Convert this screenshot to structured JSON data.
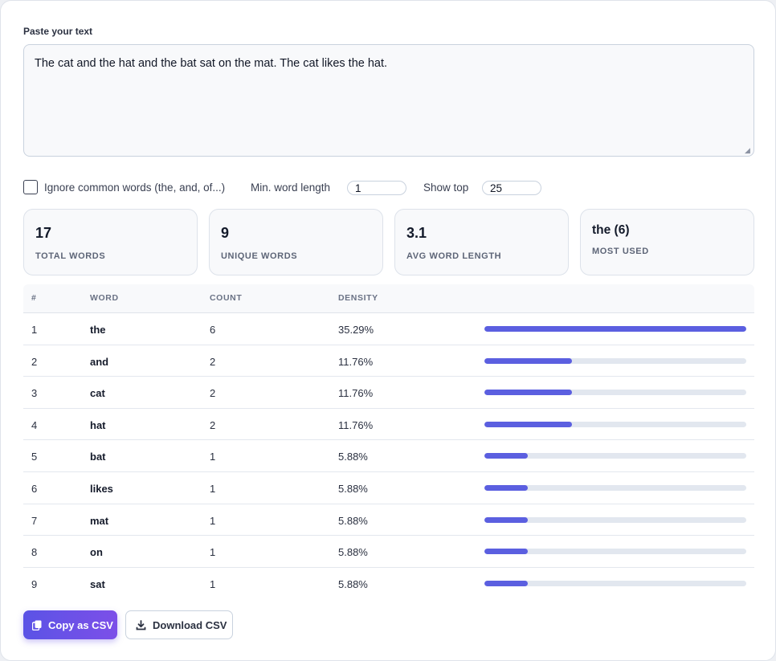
{
  "input": {
    "label": "Paste your text",
    "value": "The cat and the hat and the bat sat on the mat. The cat likes the hat."
  },
  "options": {
    "ignore_common_label": "Ignore common words (the, and, of...)",
    "ignore_common_checked": false,
    "min_length_label": "Min. word length",
    "min_length_value": "1",
    "show_top_label": "Show top",
    "show_top_value": "25"
  },
  "stats": [
    {
      "value": "17",
      "label": "TOTAL WORDS"
    },
    {
      "value": "9",
      "label": "UNIQUE WORDS"
    },
    {
      "value": "3.1",
      "label": "AVG WORD LENGTH"
    },
    {
      "value": "the (6)",
      "label": "MOST USED"
    }
  ],
  "table": {
    "headers": [
      "#",
      "WORD",
      "COUNT",
      "DENSITY"
    ],
    "rows": [
      {
        "rank": "1",
        "word": "the",
        "count": "6",
        "density": "35.29%",
        "bar_fraction": 1.0
      },
      {
        "rank": "2",
        "word": "and",
        "count": "2",
        "density": "11.76%",
        "bar_fraction": 0.3333
      },
      {
        "rank": "3",
        "word": "cat",
        "count": "2",
        "density": "11.76%",
        "bar_fraction": 0.3333
      },
      {
        "rank": "4",
        "word": "hat",
        "count": "2",
        "density": "11.76%",
        "bar_fraction": 0.3333
      },
      {
        "rank": "5",
        "word": "bat",
        "count": "1",
        "density": "5.88%",
        "bar_fraction": 0.1667
      },
      {
        "rank": "6",
        "word": "likes",
        "count": "1",
        "density": "5.88%",
        "bar_fraction": 0.1667
      },
      {
        "rank": "7",
        "word": "mat",
        "count": "1",
        "density": "5.88%",
        "bar_fraction": 0.1667
      },
      {
        "rank": "8",
        "word": "on",
        "count": "1",
        "density": "5.88%",
        "bar_fraction": 0.1667
      },
      {
        "rank": "9",
        "word": "sat",
        "count": "1",
        "density": "5.88%",
        "bar_fraction": 0.1667
      }
    ]
  },
  "actions": {
    "copy_label": "Copy as CSV",
    "download_label": "Download CSV"
  },
  "colors": {
    "accent": "#5b5fe0",
    "bar_track": "#e2e7ef"
  },
  "icons": {
    "copy": "copy-icon",
    "download": "download-icon"
  }
}
